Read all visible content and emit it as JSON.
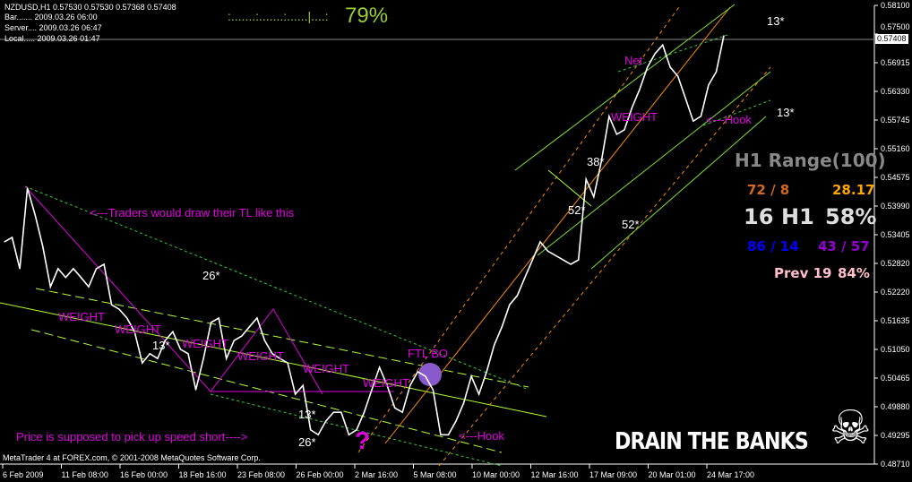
{
  "header": {
    "symbol_line": "NZDUSD,H1  0.57530 0.57530 0.57368 0.57408",
    "bar": "Bar....... 2009.03.26 06:00",
    "server": "Server.... 2009.03.26 06:47",
    "local": "Local..... 2009.03.26 01:47",
    "progress_dots": ":.......:.......:......|....:",
    "progress_pct": "79%"
  },
  "stats": {
    "title": "H1 Range(100)",
    "a": "72 / 8",
    "b": "28.17",
    "c1": "16",
    "c2": "H1",
    "c3": "58%",
    "d": "86 / 14",
    "e": "43 / 57",
    "prev": "Prev 19",
    "prev_pct": "84%"
  },
  "annotations": {
    "traders": "<---Traders would draw their TL like this",
    "n26a": "26*",
    "w1": "WEIGHT",
    "w2": "WEIGHT",
    "n13a": "13*",
    "w3": "WEIGHT",
    "w4": "WEIGHT",
    "w5": "WEIGHT",
    "w6": "WEIGHT",
    "n13b": "13*",
    "speed": "Price is supposed to pick up speed short---->",
    "n26b": "26*",
    "q": "?",
    "ftl": "FTL BO",
    "hook1": "<---Hook",
    "n52a": "52*",
    "n38": "38*",
    "n52b": "52*",
    "net": "Net",
    "w7": "WEIGHT",
    "hook2": "<---Hook",
    "n13c": "13*",
    "n13d": "13*"
  },
  "banner": {
    "text": "DRAIN THE BANKS",
    "icon": "skull-crossbones-icon"
  },
  "footer": {
    "copyright": "MetaTrader 4 at FOREX.com, © 2001-2008 MetaQuotes Software Corp."
  },
  "colors": {
    "price": "#ffffff",
    "channel": "#adff2f",
    "fib": "#ff8c00",
    "pattern": "#e000e0",
    "progress": "#9acd32"
  },
  "chart_data": {
    "type": "line",
    "title": "NZDUSD,H1",
    "ylim": [
      0.4871,
      0.581
    ],
    "y_ticks": [
      "0.58100",
      "0.57500",
      "0.56915",
      "0.56330",
      "0.55745",
      "0.55160",
      "0.54575",
      "0.53990",
      "0.53405",
      "0.52820",
      "0.52220",
      "0.51635",
      "0.51050",
      "0.50465",
      "0.49880",
      "0.49295",
      "0.48710"
    ],
    "current_price": "0.57408",
    "x_ticks": [
      "6 Feb 2009",
      "11 Feb 08:00",
      "16 Feb 00:00",
      "18 Feb 16:00",
      "23 Feb 08:00",
      "26 Feb 00:00",
      "2 Mar 16:00",
      "5 Mar 08:00",
      "10 Mar 00:00",
      "12 Mar 16:00",
      "17 Mar 09:00",
      "20 Mar 01:00",
      "24 Mar 17:00"
    ],
    "series": [
      {
        "values": [
          0.5326,
          0.5335,
          0.5271,
          0.5436,
          0.5381,
          0.5317,
          0.5234,
          0.5271,
          0.5253,
          0.5271,
          0.5253,
          0.5234,
          0.5271,
          0.528,
          0.5197,
          0.5188,
          0.517,
          0.5142,
          0.5078,
          0.5097,
          0.5087,
          0.5124,
          0.5142,
          0.5106,
          0.5097,
          0.5023,
          0.5087,
          0.5161,
          0.517,
          0.5087,
          0.5124,
          0.5133,
          0.5152,
          0.517,
          0.5124,
          0.5097,
          0.5087,
          0.5078,
          0.5014,
          0.5032,
          0.4941,
          0.4931,
          0.4959,
          0.4977,
          0.4977,
          0.4931,
          0.4941,
          0.4977,
          0.5023,
          0.5069,
          0.5032,
          0.4986,
          0.4977,
          0.5032,
          0.506,
          0.5051,
          0.5023,
          0.4931,
          0.4931,
          0.4959,
          0.4996,
          0.5051,
          0.5014,
          0.506,
          0.5115,
          0.5152,
          0.5197,
          0.5216,
          0.5253,
          0.5289,
          0.5326,
          0.5307,
          0.5298,
          0.5289,
          0.528,
          0.5289,
          0.5454,
          0.5418,
          0.5491,
          0.5583,
          0.5546,
          0.5555,
          0.5601,
          0.5638,
          0.5683,
          0.5711,
          0.5729,
          0.5683,
          0.5665,
          0.5619,
          0.5573,
          0.5583,
          0.5647,
          0.5674,
          0.5748
        ]
      }
    ]
  }
}
